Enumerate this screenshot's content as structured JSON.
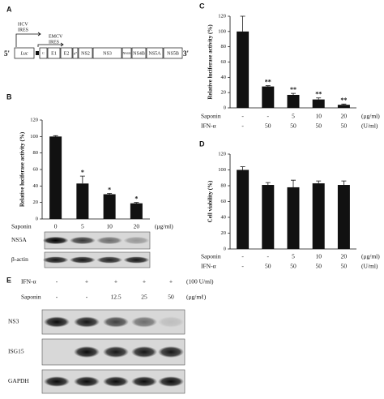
{
  "panel_labels": [
    "A",
    "B",
    "C",
    "D",
    "E"
  ],
  "construct": {
    "five_prime": "5'",
    "three_prime": "3'",
    "hcv_ires": [
      "HCV",
      "IRES"
    ],
    "emcv_ires": [
      "EMCV",
      "IRES"
    ],
    "segments": [
      "Luc",
      "C",
      "E1",
      "E2",
      "p7",
      "NS2",
      "NS3",
      "NS4A",
      "NS4B",
      "NS5A",
      "NS5B"
    ]
  },
  "chart_data": [
    {
      "type": "bar",
      "y_label": "Relative luciferase activity (%)",
      "rows": [
        {
          "name": "Saponin",
          "levels": [
            "0",
            "5",
            "10",
            "20"
          ],
          "unit": "(μg/ml)"
        }
      ],
      "values": [
        100,
        43,
        30,
        19
      ],
      "errors": [
        1,
        9,
        1,
        1
      ],
      "significance": [
        null,
        "*",
        "*",
        "*"
      ],
      "color": "#111111",
      "ylim": [
        0,
        120
      ],
      "yticks": [
        0,
        20,
        40,
        60,
        80,
        100,
        120
      ]
    },
    {
      "type": "bar",
      "y_label": "Relative luciferase activity (%)",
      "rows": [
        {
          "name": "Saponin",
          "levels": [
            "-",
            "-",
            "5",
            "10",
            "20"
          ],
          "unit": "(μg/ml)"
        },
        {
          "name": "IFN-α",
          "levels": [
            "-",
            "50",
            "50",
            "50",
            "50"
          ],
          "unit": "(U/ml)"
        }
      ],
      "values": [
        100,
        28,
        17,
        11,
        4
      ],
      "errors": [
        20,
        1,
        2,
        2,
        1
      ],
      "significance": [
        null,
        "**",
        "**",
        "**",
        "**"
      ],
      "color": "#111111",
      "ylim": [
        0,
        120
      ],
      "yticks": [
        0,
        20,
        40,
        60,
        80,
        100,
        120
      ]
    },
    {
      "type": "bar",
      "y_label": "Cell viability (%)",
      "rows": [
        {
          "name": "Saponin",
          "levels": [
            "-",
            "-",
            "5",
            "10",
            "20"
          ],
          "unit": "(μg/ml)"
        },
        {
          "name": "IFN-α",
          "levels": [
            "-",
            "50",
            "50",
            "50",
            "50"
          ],
          "unit": "(U/ml)"
        }
      ],
      "values": [
        100,
        81,
        78,
        83,
        81
      ],
      "errors": [
        4,
        3,
        9,
        3,
        5
      ],
      "color": "#111111",
      "ylim": [
        0,
        120
      ],
      "yticks": [
        0,
        20,
        40,
        60,
        80,
        100,
        120
      ]
    }
  ],
  "blots_b": [
    "NS5A",
    "β-actin"
  ],
  "panel_e": {
    "rows": [
      {
        "name": "IFN-α",
        "levels": [
          "-",
          "+",
          "+",
          "+",
          "+"
        ],
        "unit": "(100 U/ml)"
      },
      {
        "name": "Saponin",
        "levels": [
          "-",
          "-",
          "12.5",
          "25",
          "50"
        ],
        "unit": "(μg/mℓ)"
      }
    ],
    "blots": [
      "NS3",
      "ISG15",
      "GAPDH"
    ]
  }
}
